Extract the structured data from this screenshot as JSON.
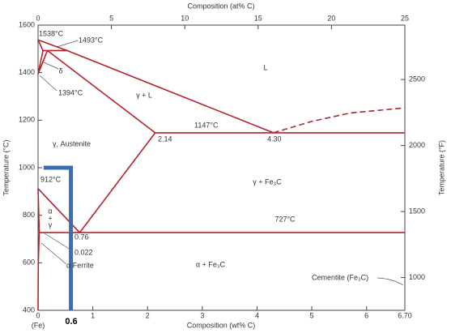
{
  "chart_data": {
    "type": "line",
    "x_label": "Composition (wt% C)",
    "x2_label": "Composition (at% C)",
    "y_label": "Temperature (°C)",
    "y2_label": "Temperature (°F)",
    "xlim": [
      0,
      6.7
    ],
    "xticks": [
      0,
      1,
      2,
      3,
      4,
      5,
      6,
      {
        "value": 6.7,
        "label": "6.70"
      }
    ],
    "x2lim": [
      0,
      25
    ],
    "x2ticks": [
      0,
      5,
      10,
      15,
      20,
      25
    ],
    "ylim": [
      400,
      1600
    ],
    "yticks": [
      400,
      600,
      800,
      1000,
      1200,
      1400,
      1600
    ],
    "y2lim": [
      752,
      2912
    ],
    "y2ticks": [
      1000,
      1500,
      2000,
      2500
    ],
    "series": [
      {
        "color": "#b5222c",
        "x": [
          0,
          0.53,
          4.3
        ],
        "values": [
          1538,
          1493,
          1147
        ]
      },
      {
        "color": "#b5222c",
        "dashed": true,
        "x": [
          4.3,
          5,
          5.7,
          6.7
        ],
        "values": [
          1147,
          1195,
          1230,
          1252
        ]
      },
      {
        "color": "#b5222c",
        "x": [
          0.09,
          0.53
        ],
        "values": [
          1493,
          1493
        ]
      },
      {
        "color": "#b5222c",
        "x": [
          0,
          0.09,
          0,
          0.17
        ],
        "values": [
          1538,
          1493,
          1394,
          1493
        ]
      },
      {
        "color": "#b5222c",
        "x": [
          0.17,
          2.14
        ],
        "values": [
          1493,
          1147
        ]
      },
      {
        "color": "#b5222c",
        "x": [
          2.14,
          6.7
        ],
        "values": [
          1147,
          1147
        ]
      },
      {
        "color": "#b5222c",
        "x": [
          2.14,
          0.76
        ],
        "values": [
          1147,
          727
        ]
      },
      {
        "color": "#b5222c",
        "x": [
          0.022,
          6.7
        ],
        "values": [
          727,
          727
        ]
      },
      {
        "color": "#b5222c",
        "x": [
          0,
          0.76
        ],
        "values": [
          912,
          727
        ]
      },
      {
        "color": "#b5222c",
        "x": [
          0,
          0.022,
          0.005,
          0
        ],
        "values": [
          912,
          727,
          600,
          400
        ]
      },
      {
        "color": "#3b6db3",
        "width": 5,
        "x": [
          0.1,
          0.6,
          0.6
        ],
        "values": [
          1000,
          1000,
          400
        ]
      }
    ],
    "annotations": [
      "1538°C",
      "1493°C",
      "L",
      "δ",
      "1394°C",
      "γ + L",
      "1147°C",
      "2.14",
      "4.30",
      "γ, Austenite",
      "912°C",
      "γ + Fe₃C",
      "α",
      "+",
      "γ",
      "727°C",
      "0.76",
      "0.022",
      "α Ferrite",
      "α + Fe₃C",
      "Cementite (Fe₃C)",
      "(Fe)",
      "0.6"
    ]
  }
}
